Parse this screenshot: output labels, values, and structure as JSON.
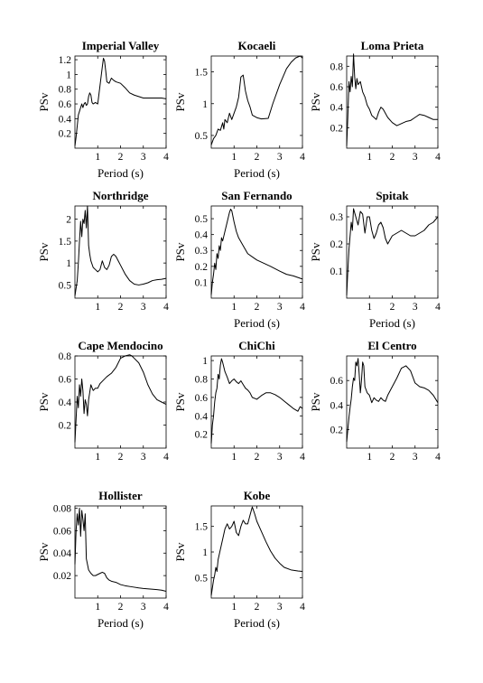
{
  "chart_data": [
    {
      "type": "line",
      "title": "Imperial Valley",
      "xlabel": "Period (s)",
      "ylabel": "PSv",
      "xlim": [
        0,
        4
      ],
      "ylim": [
        0,
        1.25
      ],
      "xticks": [
        1,
        2,
        3,
        4
      ],
      "xtick_labels": [
        "1",
        "2",
        "3",
        "4"
      ],
      "yticks": [
        0.2,
        0.4,
        0.6,
        0.8,
        1.0,
        1.2
      ],
      "ytick_labels": [
        "0.2",
        "0.4",
        "0.6",
        "0.8",
        "1",
        "1.2"
      ],
      "x": [
        0,
        0.05,
        0.1,
        0.15,
        0.2,
        0.25,
        0.3,
        0.35,
        0.4,
        0.45,
        0.5,
        0.55,
        0.6,
        0.65,
        0.7,
        0.75,
        0.8,
        0.9,
        1.0,
        1.1,
        1.2,
        1.25,
        1.3,
        1.35,
        1.4,
        1.5,
        1.6,
        1.7,
        1.8,
        2.0,
        2.2,
        2.4,
        2.6,
        2.8,
        3.0,
        3.2,
        3.4,
        3.6,
        3.8,
        4.0
      ],
      "y": [
        0.03,
        0.15,
        0.3,
        0.45,
        0.5,
        0.55,
        0.6,
        0.55,
        0.6,
        0.62,
        0.58,
        0.6,
        0.7,
        0.75,
        0.72,
        0.62,
        0.6,
        0.62,
        0.6,
        0.85,
        1.1,
        1.22,
        1.18,
        1.05,
        0.9,
        0.88,
        0.95,
        0.92,
        0.9,
        0.88,
        0.82,
        0.75,
        0.72,
        0.7,
        0.68,
        0.68,
        0.68,
        0.68,
        0.68,
        0.67
      ]
    },
    {
      "type": "line",
      "title": "Kocaeli",
      "xlabel": "Period (s)",
      "ylabel": "PSv",
      "xlim": [
        0,
        4
      ],
      "ylim": [
        0.3,
        1.75
      ],
      "xticks": [
        1,
        2,
        3,
        4
      ],
      "xtick_labels": [
        "1",
        "2",
        "3",
        "4"
      ],
      "yticks": [
        0.5,
        1.0,
        1.5
      ],
      "ytick_labels": [
        "0.5",
        "1",
        "1.5"
      ],
      "x": [
        0,
        0.1,
        0.2,
        0.3,
        0.4,
        0.5,
        0.55,
        0.6,
        0.7,
        0.8,
        0.9,
        1.0,
        1.1,
        1.2,
        1.3,
        1.4,
        1.5,
        1.6,
        1.7,
        1.8,
        2.0,
        2.2,
        2.5,
        2.7,
        3.0,
        3.3,
        3.5,
        3.7,
        3.9,
        4.0
      ],
      "y": [
        0.35,
        0.45,
        0.5,
        0.6,
        0.58,
        0.7,
        0.6,
        0.75,
        0.7,
        0.85,
        0.75,
        0.85,
        0.95,
        1.1,
        1.42,
        1.45,
        1.2,
        1.05,
        0.95,
        0.82,
        0.78,
        0.76,
        0.77,
        1.0,
        1.3,
        1.55,
        1.65,
        1.72,
        1.75,
        1.72
      ]
    },
    {
      "type": "line",
      "title": "Loma Prieta",
      "xlabel": "",
      "ylabel": "PSv",
      "xlim": [
        0,
        4
      ],
      "ylim": [
        0,
        0.9
      ],
      "xticks": [
        1,
        2,
        3,
        4
      ],
      "xtick_labels": [
        "1",
        "2",
        "3",
        "4"
      ],
      "yticks": [
        0.2,
        0.4,
        0.6,
        0.8
      ],
      "ytick_labels": [
        "0.2",
        "0.4",
        "0.6",
        "0.8"
      ],
      "x": [
        0,
        0.05,
        0.1,
        0.15,
        0.2,
        0.25,
        0.3,
        0.35,
        0.4,
        0.45,
        0.5,
        0.6,
        0.7,
        0.8,
        0.9,
        1.0,
        1.1,
        1.2,
        1.3,
        1.4,
        1.5,
        1.6,
        1.8,
        2.0,
        2.2,
        2.4,
        2.6,
        2.8,
        3.0,
        3.2,
        3.4,
        3.6,
        3.8,
        4.0
      ],
      "y": [
        0.02,
        0.3,
        0.65,
        0.55,
        0.7,
        0.6,
        0.92,
        0.7,
        0.58,
        0.68,
        0.62,
        0.65,
        0.55,
        0.5,
        0.42,
        0.38,
        0.32,
        0.3,
        0.28,
        0.35,
        0.4,
        0.38,
        0.3,
        0.25,
        0.22,
        0.24,
        0.26,
        0.27,
        0.3,
        0.33,
        0.32,
        0.3,
        0.28,
        0.28
      ]
    },
    {
      "type": "line",
      "title": "Northridge",
      "xlabel": "",
      "ylabel": "PSv",
      "xlim": [
        0,
        4
      ],
      "ylim": [
        0.2,
        2.3
      ],
      "xticks": [
        1,
        2,
        3,
        4
      ],
      "xtick_labels": [
        "1",
        "2",
        "3",
        "4"
      ],
      "yticks": [
        0.5,
        1.0,
        1.5,
        2.0
      ],
      "ytick_labels": [
        "0.5",
        "1",
        "1.5",
        "2"
      ],
      "x": [
        0,
        0.1,
        0.15,
        0.2,
        0.25,
        0.3,
        0.35,
        0.4,
        0.45,
        0.5,
        0.55,
        0.6,
        0.65,
        0.7,
        0.8,
        0.9,
        1.0,
        1.1,
        1.2,
        1.3,
        1.4,
        1.5,
        1.6,
        1.7,
        1.8,
        1.9,
        2.0,
        2.2,
        2.4,
        2.6,
        2.8,
        3.0,
        3.2,
        3.4,
        3.6,
        3.8,
        4.0
      ],
      "y": [
        0.25,
        0.6,
        1.0,
        1.5,
        1.95,
        1.6,
        2.0,
        1.9,
        2.2,
        1.8,
        2.3,
        1.4,
        1.2,
        1.05,
        0.9,
        0.85,
        0.8,
        0.85,
        1.05,
        0.9,
        0.85,
        0.95,
        1.15,
        1.2,
        1.15,
        1.05,
        0.95,
        0.75,
        0.6,
        0.52,
        0.5,
        0.52,
        0.55,
        0.6,
        0.62,
        0.63,
        0.65
      ]
    },
    {
      "type": "line",
      "title": "San Fernando",
      "xlabel": "Period (s)",
      "ylabel": "PSv",
      "xlim": [
        0,
        4
      ],
      "ylim": [
        0,
        0.58
      ],
      "xticks": [
        1,
        2,
        3,
        4
      ],
      "xtick_labels": [
        "1",
        "2",
        "3",
        "4"
      ],
      "yticks": [
        0.1,
        0.2,
        0.3,
        0.4,
        0.5
      ],
      "ytick_labels": [
        "0.1",
        "0.2",
        "0.3",
        "0.4",
        "0.5"
      ],
      "x": [
        0,
        0.05,
        0.1,
        0.15,
        0.2,
        0.25,
        0.3,
        0.35,
        0.4,
        0.45,
        0.5,
        0.6,
        0.7,
        0.8,
        0.85,
        0.9,
        1.0,
        1.1,
        1.2,
        1.4,
        1.6,
        1.8,
        2.0,
        2.3,
        2.6,
        3.0,
        3.3,
        3.6,
        4.0
      ],
      "y": [
        0.02,
        0.1,
        0.15,
        0.22,
        0.18,
        0.28,
        0.25,
        0.33,
        0.3,
        0.38,
        0.36,
        0.42,
        0.48,
        0.54,
        0.56,
        0.55,
        0.48,
        0.42,
        0.38,
        0.33,
        0.28,
        0.26,
        0.24,
        0.22,
        0.2,
        0.17,
        0.15,
        0.14,
        0.12
      ]
    },
    {
      "type": "line",
      "title": "Spitak",
      "xlabel": "Period (s)",
      "ylabel": "PSv",
      "xlim": [
        0,
        4
      ],
      "ylim": [
        0,
        0.34
      ],
      "xticks": [
        1,
        2,
        3,
        4
      ],
      "xtick_labels": [
        "1",
        "2",
        "3",
        "4"
      ],
      "yticks": [
        0.1,
        0.2,
        0.3
      ],
      "ytick_labels": [
        "0.1",
        "0.2",
        "0.3"
      ],
      "x": [
        0,
        0.05,
        0.1,
        0.15,
        0.2,
        0.25,
        0.3,
        0.4,
        0.5,
        0.6,
        0.7,
        0.8,
        0.9,
        1.0,
        1.1,
        1.2,
        1.3,
        1.4,
        1.5,
        1.6,
        1.7,
        1.8,
        2.0,
        2.2,
        2.4,
        2.6,
        2.8,
        3.0,
        3.2,
        3.4,
        3.6,
        3.8,
        4.0
      ],
      "y": [
        0.01,
        0.1,
        0.18,
        0.23,
        0.28,
        0.25,
        0.33,
        0.3,
        0.27,
        0.32,
        0.31,
        0.24,
        0.3,
        0.3,
        0.25,
        0.22,
        0.24,
        0.27,
        0.28,
        0.26,
        0.22,
        0.2,
        0.23,
        0.24,
        0.25,
        0.24,
        0.23,
        0.23,
        0.24,
        0.25,
        0.27,
        0.28,
        0.3
      ]
    },
    {
      "type": "line",
      "title": "Cape Mendocino",
      "xlabel": "",
      "ylabel": "PSv",
      "xlim": [
        0,
        4
      ],
      "ylim": [
        0,
        0.8
      ],
      "xticks": [
        1,
        2,
        3,
        4
      ],
      "xtick_labels": [
        "1",
        "2",
        "3",
        "4"
      ],
      "yticks": [
        0.2,
        0.4,
        0.6,
        0.8
      ],
      "ytick_labels": [
        "0.2",
        "0.4",
        "0.6",
        "0.8"
      ],
      "x": [
        0,
        0.05,
        0.1,
        0.15,
        0.2,
        0.25,
        0.3,
        0.35,
        0.4,
        0.45,
        0.5,
        0.55,
        0.6,
        0.7,
        0.8,
        0.9,
        1.0,
        1.1,
        1.2,
        1.4,
        1.6,
        1.8,
        2.0,
        2.2,
        2.4,
        2.5,
        2.6,
        2.8,
        3.0,
        3.2,
        3.4,
        3.6,
        3.8,
        4.0
      ],
      "y": [
        0.05,
        0.25,
        0.45,
        0.35,
        0.55,
        0.45,
        0.6,
        0.5,
        0.3,
        0.42,
        0.38,
        0.28,
        0.42,
        0.55,
        0.5,
        0.52,
        0.52,
        0.56,
        0.58,
        0.62,
        0.65,
        0.7,
        0.78,
        0.8,
        0.81,
        0.8,
        0.78,
        0.74,
        0.66,
        0.55,
        0.47,
        0.42,
        0.4,
        0.38
      ]
    },
    {
      "type": "line",
      "title": "ChiChi",
      "xlabel": "",
      "ylabel": "PSv",
      "xlim": [
        0,
        4
      ],
      "ylim": [
        0.05,
        1.05
      ],
      "xticks": [
        1,
        2,
        3,
        4
      ],
      "xtick_labels": [
        "1",
        "2",
        "3",
        "4"
      ],
      "yticks": [
        0.2,
        0.4,
        0.6,
        0.8,
        1.0
      ],
      "ytick_labels": [
        "0.2",
        "0.4",
        "0.6",
        "0.8",
        "1"
      ],
      "x": [
        0,
        0.05,
        0.1,
        0.15,
        0.2,
        0.25,
        0.3,
        0.35,
        0.4,
        0.45,
        0.5,
        0.6,
        0.7,
        0.8,
        0.9,
        1.0,
        1.1,
        1.2,
        1.3,
        1.4,
        1.5,
        1.6,
        1.7,
        1.8,
        2.0,
        2.2,
        2.4,
        2.6,
        2.8,
        3.0,
        3.2,
        3.4,
        3.6,
        3.8,
        3.9,
        4.0
      ],
      "y": [
        0.1,
        0.3,
        0.4,
        0.55,
        0.65,
        0.7,
        0.85,
        0.8,
        0.95,
        1.02,
        0.98,
        0.88,
        0.82,
        0.75,
        0.78,
        0.8,
        0.77,
        0.75,
        0.78,
        0.74,
        0.7,
        0.68,
        0.65,
        0.6,
        0.58,
        0.62,
        0.65,
        0.65,
        0.63,
        0.6,
        0.56,
        0.52,
        0.48,
        0.45,
        0.5,
        0.48
      ]
    },
    {
      "type": "line",
      "title": "El Centro",
      "xlabel": "",
      "ylabel": "PSv",
      "xlim": [
        0,
        4
      ],
      "ylim": [
        0.05,
        0.8
      ],
      "xticks": [
        1,
        2,
        3,
        4
      ],
      "xtick_labels": [
        "1",
        "2",
        "3",
        "4"
      ],
      "yticks": [
        0.2,
        0.4,
        0.6
      ],
      "ytick_labels": [
        "0.2",
        "0.4",
        "0.6"
      ],
      "x": [
        0,
        0.05,
        0.1,
        0.15,
        0.2,
        0.25,
        0.3,
        0.35,
        0.4,
        0.45,
        0.5,
        0.55,
        0.6,
        0.65,
        0.7,
        0.75,
        0.8,
        0.9,
        1.0,
        1.1,
        1.2,
        1.3,
        1.4,
        1.5,
        1.6,
        1.7,
        1.8,
        2.0,
        2.2,
        2.4,
        2.6,
        2.8,
        3.0,
        3.2,
        3.4,
        3.6,
        3.8,
        4.0
      ],
      "y": [
        0.1,
        0.2,
        0.3,
        0.38,
        0.45,
        0.55,
        0.62,
        0.6,
        0.75,
        0.72,
        0.78,
        0.65,
        0.5,
        0.6,
        0.75,
        0.72,
        0.55,
        0.5,
        0.48,
        0.42,
        0.46,
        0.44,
        0.43,
        0.46,
        0.44,
        0.43,
        0.48,
        0.55,
        0.62,
        0.7,
        0.72,
        0.68,
        0.58,
        0.55,
        0.54,
        0.52,
        0.48,
        0.42
      ]
    },
    {
      "type": "line",
      "title": "Hollister",
      "xlabel": "Period (s)",
      "ylabel": "PSv",
      "xlim": [
        0,
        4
      ],
      "ylim": [
        0.0,
        0.082
      ],
      "xticks": [
        1,
        2,
        3,
        4
      ],
      "xtick_labels": [
        "1",
        "2",
        "3",
        "4"
      ],
      "yticks": [
        0.02,
        0.04,
        0.06,
        0.08
      ],
      "ytick_labels": [
        "0.02",
        "0.04",
        "0.06",
        "0.08"
      ],
      "x": [
        0,
        0.05,
        0.1,
        0.15,
        0.2,
        0.25,
        0.3,
        0.35,
        0.4,
        0.45,
        0.5,
        0.6,
        0.7,
        0.8,
        0.9,
        1.0,
        1.1,
        1.2,
        1.3,
        1.4,
        1.5,
        1.6,
        1.8,
        2.0,
        2.2,
        2.5,
        2.8,
        3.0,
        3.3,
        3.6,
        3.8,
        4.0
      ],
      "y": [
        0.03,
        0.06,
        0.075,
        0.065,
        0.08,
        0.055,
        0.078,
        0.07,
        0.06,
        0.075,
        0.035,
        0.025,
        0.022,
        0.02,
        0.02,
        0.021,
        0.022,
        0.023,
        0.022,
        0.018,
        0.016,
        0.015,
        0.014,
        0.012,
        0.011,
        0.01,
        0.009,
        0.0085,
        0.008,
        0.0075,
        0.007,
        0.006
      ]
    },
    {
      "type": "line",
      "title": "Kobe",
      "xlabel": "Period (s)",
      "ylabel": "PSv",
      "xlim": [
        0,
        4
      ],
      "ylim": [
        0.1,
        1.9
      ],
      "xticks": [
        1,
        2,
        3,
        4
      ],
      "xtick_labels": [
        "1",
        "2",
        "3",
        "4"
      ],
      "yticks": [
        0.5,
        1.0,
        1.5
      ],
      "ytick_labels": [
        "0.5",
        "1",
        "1.5"
      ],
      "x": [
        0,
        0.05,
        0.1,
        0.15,
        0.2,
        0.25,
        0.3,
        0.4,
        0.5,
        0.6,
        0.7,
        0.8,
        0.9,
        1.0,
        1.1,
        1.2,
        1.3,
        1.4,
        1.5,
        1.6,
        1.7,
        1.8,
        1.9,
        2.0,
        2.2,
        2.4,
        2.6,
        2.8,
        3.0,
        3.2,
        3.5,
        3.8,
        4.0
      ],
      "y": [
        0.15,
        0.3,
        0.45,
        0.55,
        0.7,
        0.62,
        0.85,
        1.05,
        1.25,
        1.45,
        1.55,
        1.45,
        1.5,
        1.6,
        1.38,
        1.32,
        1.5,
        1.62,
        1.55,
        1.55,
        1.72,
        1.88,
        1.75,
        1.6,
        1.4,
        1.2,
        1.02,
        0.88,
        0.78,
        0.7,
        0.65,
        0.63,
        0.62
      ]
    }
  ]
}
